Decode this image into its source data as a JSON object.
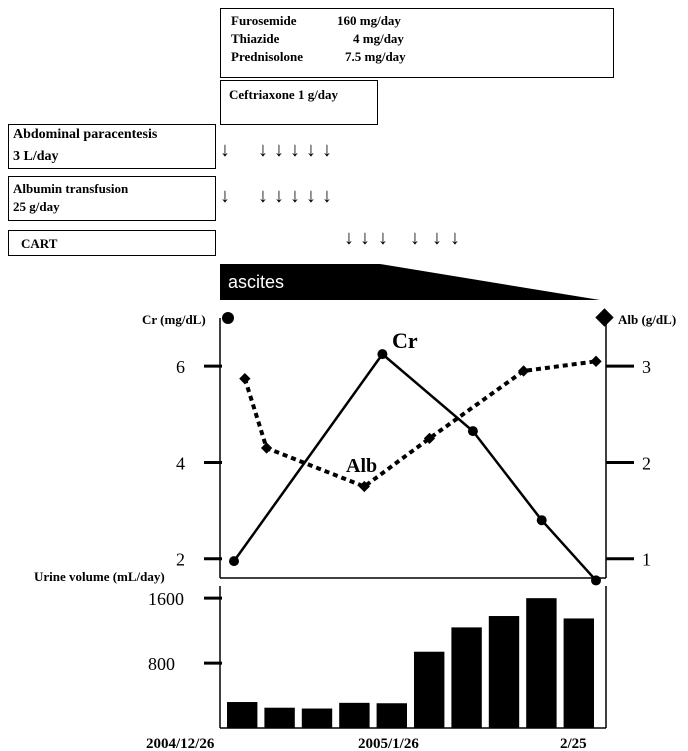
{
  "medications": {
    "rows": [
      {
        "drug": "Furosemide",
        "dose": "160 mg/day"
      },
      {
        "drug": "Thiazide",
        "dose": "4 mg/day"
      },
      {
        "drug": "Prednisolone",
        "dose": "7.5 mg/day"
      }
    ],
    "ceftriaxone": "Ceftriaxone 1 g/day"
  },
  "procedures": {
    "paracentesis_title": "Abdominal paracentesis",
    "paracentesis_dose": "3 L/day",
    "albumin_title": "Albumin transfusion",
    "albumin_dose": "25 g/day",
    "cart": "CART"
  },
  "ascites_label": "ascites",
  "chart_data": [
    {
      "type": "line",
      "y_left_label": "Cr (mg/dL)",
      "y_right_label": "Alb (g/dL)",
      "y_left_ticks": [
        2,
        4,
        6
      ],
      "y_right_ticks": [
        1,
        2,
        3
      ],
      "ylim_left": [
        1.6,
        7
      ],
      "ylim_right": [
        0.8,
        3.5
      ],
      "series": [
        {
          "name": "Cr",
          "axis": "left",
          "style": "solid",
          "marker": "circle",
          "x": [
            0,
            0.41,
            0.66,
            0.85,
            1.0
          ],
          "values": [
            1.95,
            6.25,
            4.65,
            2.8,
            1.55
          ]
        },
        {
          "name": "Alb",
          "axis": "right",
          "style": "dotted",
          "marker": "diamond",
          "x": [
            0.03,
            0.09,
            0.36,
            0.54,
            0.8,
            1.0
          ],
          "values": [
            2.87,
            2.15,
            1.75,
            2.25,
            2.95,
            3.05
          ]
        }
      ],
      "series_labels": {
        "Cr": "Cr",
        "Alb": "Alb"
      }
    },
    {
      "type": "bar",
      "ylabel": "Urine volume (mL/day)",
      "y_ticks": [
        800,
        1600
      ],
      "ylim": [
        0,
        1750
      ],
      "values": [
        320,
        250,
        240,
        310,
        305,
        940,
        1240,
        1380,
        1600,
        1350
      ],
      "x_tick_labels": [
        "2004/12/26",
        "2005/1/26",
        "2/25"
      ]
    }
  ],
  "arrow_glyph": "↓"
}
